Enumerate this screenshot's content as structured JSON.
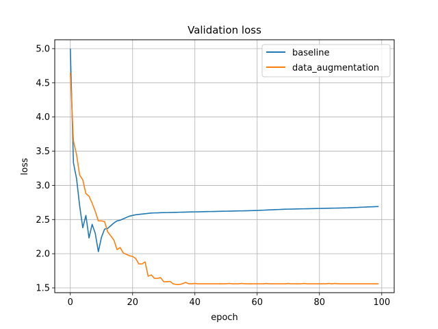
{
  "chart_data": {
    "type": "line",
    "title": "Validation loss",
    "xlabel": "epoch",
    "ylabel": "loss",
    "xlim": [
      -5,
      104
    ],
    "ylim": [
      1.43,
      5.13
    ],
    "xticks": [
      0,
      20,
      40,
      60,
      80,
      100
    ],
    "yticks": [
      1.5,
      2.0,
      2.5,
      3.0,
      3.5,
      4.0,
      4.5,
      5.0
    ],
    "grid": true,
    "legend": "upper right",
    "series": [
      {
        "name": "baseline",
        "color": "#1f77b4",
        "values": [
          5.0,
          3.33,
          3.1,
          2.7,
          2.38,
          2.56,
          2.23,
          2.43,
          2.3,
          2.03,
          2.24,
          2.36,
          2.37,
          2.41,
          2.45,
          2.48,
          2.49,
          2.51,
          2.53,
          2.55,
          2.56,
          2.57,
          2.575,
          2.58,
          2.585,
          2.59,
          2.595,
          2.597,
          2.598,
          2.6,
          2.601,
          2.602,
          2.603,
          2.604,
          2.605,
          2.607,
          2.608,
          2.609,
          2.61,
          2.611,
          2.612,
          2.613,
          2.614,
          2.615,
          2.616,
          2.617,
          2.618,
          2.619,
          2.62,
          2.621,
          2.622,
          2.623,
          2.624,
          2.625,
          2.626,
          2.627,
          2.628,
          2.629,
          2.63,
          2.631,
          2.633,
          2.635,
          2.637,
          2.639,
          2.641,
          2.643,
          2.645,
          2.647,
          2.649,
          2.651,
          2.652,
          2.653,
          2.654,
          2.655,
          2.656,
          2.657,
          2.658,
          2.659,
          2.66,
          2.661,
          2.662,
          2.663,
          2.664,
          2.665,
          2.666,
          2.667,
          2.668,
          2.669,
          2.67,
          2.671,
          2.673,
          2.675,
          2.677,
          2.679,
          2.681,
          2.683,
          2.685,
          2.687,
          2.689,
          2.69
        ]
      },
      {
        "name": "data_augmentation",
        "color": "#ff7f0e",
        "values": [
          4.65,
          3.65,
          3.45,
          3.15,
          3.08,
          2.88,
          2.84,
          2.74,
          2.62,
          2.48,
          2.48,
          2.47,
          2.32,
          2.26,
          2.2,
          2.06,
          2.09,
          2.01,
          1.99,
          1.97,
          1.96,
          1.93,
          1.85,
          1.85,
          1.88,
          1.67,
          1.69,
          1.64,
          1.64,
          1.65,
          1.59,
          1.59,
          1.595,
          1.56,
          1.55,
          1.55,
          1.56,
          1.58,
          1.56,
          1.56,
          1.565,
          1.56,
          1.56,
          1.56,
          1.56,
          1.56,
          1.56,
          1.56,
          1.56,
          1.56,
          1.56,
          1.565,
          1.56,
          1.56,
          1.56,
          1.565,
          1.56,
          1.56,
          1.56,
          1.56,
          1.56,
          1.56,
          1.56,
          1.565,
          1.56,
          1.56,
          1.56,
          1.56,
          1.56,
          1.56,
          1.565,
          1.56,
          1.56,
          1.56,
          1.56,
          1.565,
          1.56,
          1.56,
          1.56,
          1.56,
          1.56,
          1.56,
          1.56,
          1.565,
          1.56,
          1.565,
          1.56,
          1.56,
          1.56,
          1.56,
          1.56,
          1.56,
          1.56,
          1.56,
          1.56,
          1.56,
          1.56,
          1.56,
          1.56,
          1.56
        ]
      }
    ]
  }
}
